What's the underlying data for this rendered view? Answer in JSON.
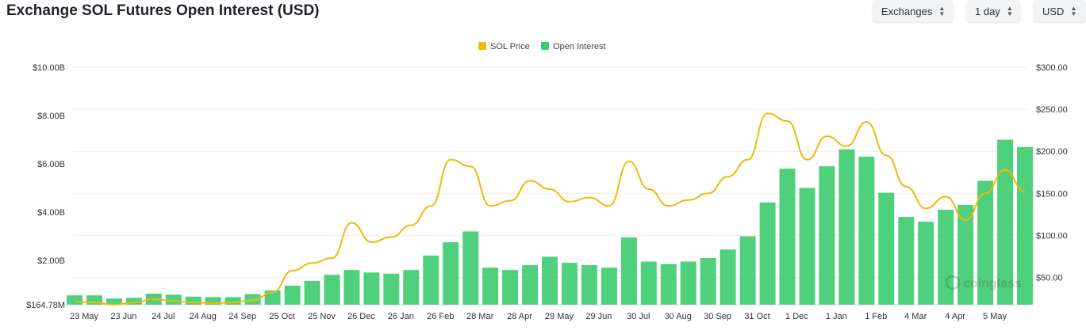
{
  "header": {
    "title": "Exchange SOL Futures Open Interest (USD)",
    "controls": [
      {
        "label": "Exchanges"
      },
      {
        "label": "1 day"
      },
      {
        "label": "USD"
      }
    ]
  },
  "watermark": "coinglass",
  "chart_data": {
    "type": "bar+line",
    "title": "Exchange SOL Futures Open Interest (USD)",
    "legend": {
      "placement": "top-center",
      "entries": [
        "SOL Price",
        "Open Interest"
      ]
    },
    "colors": {
      "price": "#f0b90b",
      "open_interest": "#3ccb6f",
      "grid": "#eeeeee"
    },
    "x_ticks": [
      "23 May",
      "23 Jun",
      "24 Jul",
      "24 Aug",
      "24 Sep",
      "25 Oct",
      "25 Nov",
      "26 Dec",
      "26 Jan",
      "26 Feb",
      "28 Mar",
      "28 Apr",
      "29 May",
      "29 Jun",
      "30 Jul",
      "30 Aug",
      "30 Sep",
      "31 Oct",
      "1 Dec",
      "1 Jan",
      "1 Feb",
      "4 Mar",
      "4 Apr",
      "5 May"
    ],
    "y_left": {
      "unit": "USD",
      "ylim": [
        0.16478,
        10.0
      ],
      "ticks": [
        {
          "value": 10.0,
          "label": "$10.00B"
        },
        {
          "value": 8.0,
          "label": "$8.00B"
        },
        {
          "value": 6.0,
          "label": "$6.00B"
        },
        {
          "value": 4.0,
          "label": "$4.00B"
        },
        {
          "value": 2.0,
          "label": "$2.00B"
        },
        {
          "value": 0.16478,
          "label": "$164.78M"
        }
      ]
    },
    "y_right": {
      "unit": "USD",
      "ylim": [
        17.5,
        300
      ],
      "ticks": [
        {
          "value": 300,
          "label": "$300.00"
        },
        {
          "value": 250,
          "label": "$250.00"
        },
        {
          "value": 200,
          "label": "$200.00"
        },
        {
          "value": 150,
          "label": "$150.00"
        },
        {
          "value": 100,
          "label": "$100.00"
        },
        {
          "value": 50,
          "label": "$50.00"
        }
      ]
    },
    "series": [
      {
        "name": "Open Interest",
        "axis": "left",
        "type": "bar",
        "unit": "billion USD",
        "x": [
          "23 May",
          "8 Jun",
          "23 Jun",
          "8 Jul",
          "24 Jul",
          "8 Aug",
          "24 Aug",
          "8 Sep",
          "24 Sep",
          "10 Oct",
          "25 Oct",
          "10 Nov",
          "25 Nov",
          "10 Dec",
          "26 Dec",
          "10 Jan",
          "26 Jan",
          "10 Feb",
          "26 Feb",
          "12 Mar",
          "28 Mar",
          "12 Apr",
          "28 Apr",
          "12 May",
          "29 May",
          "12 Jun",
          "29 Jun",
          "14 Jul",
          "30 Jul",
          "14 Aug",
          "30 Aug",
          "14 Sep",
          "30 Sep",
          "15 Oct",
          "31 Oct",
          "15 Nov",
          "1 Dec",
          "15 Dec",
          "1 Jan",
          "15 Jan",
          "1 Feb",
          "15 Feb",
          "4 Mar",
          "20 Mar",
          "4 Apr",
          "20 Apr",
          "5 May",
          "15 May",
          "22 May"
        ],
        "values": [
          0.55,
          0.55,
          0.42,
          0.45,
          0.62,
          0.58,
          0.5,
          0.48,
          0.48,
          0.6,
          0.75,
          0.95,
          1.15,
          1.4,
          1.6,
          1.5,
          1.45,
          1.6,
          2.2,
          2.75,
          3.2,
          1.7,
          1.6,
          1.8,
          2.15,
          1.9,
          1.8,
          1.7,
          2.95,
          1.95,
          1.85,
          1.95,
          2.1,
          2.45,
          3.0,
          4.4,
          5.8,
          5.0,
          5.9,
          6.6,
          6.3,
          4.8,
          3.8,
          3.6,
          4.1,
          4.3,
          5.3,
          7.0,
          6.7
        ]
      },
      {
        "name": "SOL Price",
        "axis": "right",
        "type": "line",
        "unit": "USD",
        "x": [
          "23 May",
          "8 Jun",
          "23 Jun",
          "8 Jul",
          "24 Jul",
          "8 Aug",
          "24 Aug",
          "8 Sep",
          "24 Sep",
          "10 Oct",
          "25 Oct",
          "10 Nov",
          "25 Nov",
          "10 Dec",
          "26 Dec",
          "10 Jan",
          "26 Jan",
          "10 Feb",
          "26 Feb",
          "12 Mar",
          "28 Mar",
          "12 Apr",
          "28 Apr",
          "12 May",
          "29 May",
          "12 Jun",
          "29 Jun",
          "14 Jul",
          "30 Jul",
          "14 Aug",
          "30 Aug",
          "14 Sep",
          "30 Sep",
          "15 Oct",
          "31 Oct",
          "15 Nov",
          "1 Dec",
          "15 Dec",
          "1 Jan",
          "15 Jan",
          "1 Feb",
          "15 Feb",
          "4 Mar",
          "20 Mar",
          "4 Apr",
          "20 Apr",
          "5 May",
          "15 May",
          "22 May"
        ],
        "values": [
          21,
          20,
          17.5,
          20,
          24,
          22,
          20,
          19.5,
          20,
          23,
          32,
          58,
          67,
          73,
          115,
          92,
          98,
          112,
          135,
          190,
          182,
          135,
          141,
          165,
          155,
          140,
          145,
          135,
          188,
          155,
          135,
          142,
          150,
          170,
          190,
          245,
          236,
          190,
          218,
          206,
          235,
          195,
          158,
          132,
          146,
          118,
          150,
          178,
          152
        ]
      }
    ]
  }
}
